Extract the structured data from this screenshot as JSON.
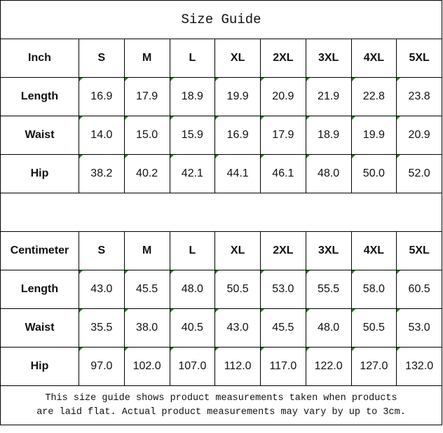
{
  "title": "Size Guide",
  "sizes": [
    "S",
    "M",
    "L",
    "XL",
    "2XL",
    "3XL",
    "4XL",
    "5XL"
  ],
  "tables": [
    {
      "unit": "Inch",
      "rows": [
        {
          "label": "Length",
          "values": [
            "16.9",
            "17.9",
            "18.9",
            "19.9",
            "20.9",
            "21.9",
            "22.8",
            "23.8"
          ]
        },
        {
          "label": "Waist",
          "values": [
            "14.0",
            "15.0",
            "15.9",
            "16.9",
            "17.9",
            "18.9",
            "19.9",
            "20.9"
          ]
        },
        {
          "label": "Hip",
          "values": [
            "38.2",
            "40.2",
            "42.1",
            "44.1",
            "46.1",
            "48.0",
            "50.0",
            "52.0"
          ]
        }
      ]
    },
    {
      "unit": "Centimeter",
      "rows": [
        {
          "label": "Length",
          "values": [
            "43.0",
            "45.5",
            "48.0",
            "50.5",
            "53.0",
            "55.5",
            "58.0",
            "60.5"
          ]
        },
        {
          "label": "Waist",
          "values": [
            "35.5",
            "38.0",
            "40.5",
            "43.0",
            "45.5",
            "48.0",
            "50.5",
            "53.0"
          ]
        },
        {
          "label": "Hip",
          "values": [
            "97.0",
            "102.0",
            "107.0",
            "112.0",
            "117.0",
            "122.0",
            "127.0",
            "132.0"
          ]
        }
      ]
    }
  ],
  "footer": {
    "line1": "This size guide shows product measurements taken when products",
    "line2": "are laid flat. Actual product measurements may vary by up to 3cm."
  },
  "colors": {
    "border": "#000000",
    "error_indicator": "#1a8a1a"
  }
}
